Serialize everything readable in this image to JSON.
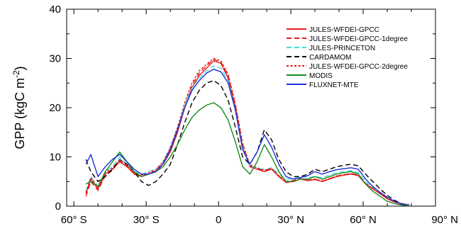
{
  "chart_data": {
    "type": "line",
    "title": "",
    "xlabel": "",
    "ylabel": "GPP (kgC m",
    "ylabel_sup": "-2",
    "ylabel_close": ")",
    "xlim": [
      -63,
      90
    ],
    "ylim": [
      0,
      40
    ],
    "x_ticks": [
      {
        "value": -60,
        "label": "60° S"
      },
      {
        "value": -30,
        "label": "30° S"
      },
      {
        "value": 0,
        "label": "0"
      },
      {
        "value": 30,
        "label": "30° N"
      },
      {
        "value": 60,
        "label": "60° N"
      },
      {
        "value": 90,
        "label": "90° N"
      }
    ],
    "y_ticks": [
      {
        "value": 0,
        "label": "0"
      },
      {
        "value": 10,
        "label": "10"
      },
      {
        "value": 20,
        "label": "20"
      },
      {
        "value": 30,
        "label": "30"
      },
      {
        "value": 40,
        "label": "40"
      }
    ],
    "grid": false,
    "legend_position": "top-right",
    "series": [
      {
        "name": "JULES-WFDEI-GPCC",
        "color": "#e31a1c",
        "dash": "solid",
        "x": [
          -55,
          -53,
          -50,
          -47,
          -44,
          -41,
          -38,
          -35,
          -32,
          -29,
          -26,
          -23,
          -20,
          -17,
          -14,
          -11,
          -8,
          -5,
          -2,
          1,
          4,
          7,
          10,
          13,
          16,
          19,
          22,
          25,
          28,
          31,
          34,
          37,
          40,
          43,
          46,
          49,
          52,
          55,
          58,
          61,
          64,
          67,
          70,
          73,
          76,
          79
        ],
        "y": [
          2.5,
          5.5,
          3.5,
          6.5,
          7.5,
          9,
          8,
          6.5,
          6,
          6.5,
          7,
          8.5,
          11,
          15,
          20,
          24,
          26.5,
          28,
          29.5,
          29,
          26,
          20,
          12,
          8,
          7.5,
          7,
          7.5,
          6,
          4.8,
          5,
          5.5,
          5.2,
          5.4,
          5,
          5.5,
          6,
          6.3,
          6.5,
          6.2,
          4.5,
          3.5,
          2.5,
          1.5,
          0.8,
          0.4,
          0.3
        ]
      },
      {
        "name": "JULES-WFDEI-GPCC-1degree",
        "color": "#e31a1c",
        "dash": "long",
        "x": [
          -55,
          -53,
          -50,
          -47,
          -44,
          -41,
          -38,
          -35,
          -32,
          -29,
          -26,
          -23,
          -20,
          -17,
          -14,
          -11,
          -8,
          -5,
          -2,
          1,
          4,
          7,
          10,
          13,
          16,
          19,
          22,
          25,
          28,
          31,
          34,
          37,
          40,
          43,
          46,
          49,
          52,
          55,
          58,
          61,
          64,
          67,
          70,
          73,
          76,
          79
        ],
        "y": [
          2,
          5,
          3.2,
          6.2,
          7.3,
          9.2,
          8.2,
          6.6,
          6.1,
          6.6,
          7.2,
          8.8,
          11.5,
          15.5,
          20.5,
          24.5,
          27,
          28.5,
          29.8,
          29.2,
          26.5,
          20.5,
          12.5,
          8.2,
          7.6,
          7.2,
          7.6,
          6.1,
          5,
          5.2,
          5.6,
          5.3,
          5.5,
          5.1,
          5.6,
          6.1,
          6.4,
          6.6,
          6.3,
          4.6,
          3.6,
          2.6,
          1.6,
          0.9,
          0.5,
          0.3
        ]
      },
      {
        "name": "JULES-PRINCETON",
        "color": "#40e0e0",
        "dash": "long",
        "x": [
          -55,
          -53,
          -50,
          -47,
          -44,
          -41,
          -38,
          -35,
          -32,
          -29,
          -26,
          -23,
          -20,
          -17,
          -14,
          -11,
          -8,
          -5,
          -2,
          1,
          4,
          7,
          10,
          13,
          16,
          19,
          22,
          25,
          28,
          31,
          34,
          37,
          40,
          43,
          46,
          49,
          52,
          55,
          58,
          61,
          64,
          67,
          70,
          73,
          76,
          79
        ],
        "y": [
          3,
          6,
          4,
          7,
          8,
          10,
          8.5,
          7,
          6.5,
          7,
          7.5,
          9,
          12,
          16,
          20.5,
          24,
          26,
          27.5,
          28.5,
          28,
          25.5,
          19.5,
          12,
          8,
          7.8,
          7.4,
          7.8,
          6.5,
          5.4,
          5.6,
          6,
          5.8,
          6,
          5.8,
          6.3,
          6.8,
          7,
          7.2,
          6.8,
          5,
          3.8,
          2.8,
          1.8,
          1,
          0.5,
          0.3
        ]
      },
      {
        "name": "CARDAMOM",
        "color": "#000000",
        "dash": "long",
        "x": [
          -55,
          -53,
          -50,
          -47,
          -44,
          -41,
          -38,
          -35,
          -32,
          -29,
          -26,
          -23,
          -20,
          -17,
          -14,
          -11,
          -8,
          -5,
          -2,
          1,
          4,
          7,
          10,
          13,
          16,
          19,
          22,
          25,
          28,
          31,
          34,
          37,
          40,
          43,
          46,
          49,
          52,
          55,
          58,
          61,
          64,
          67,
          70,
          73,
          76,
          79
        ],
        "y": [
          9.5,
          7,
          5,
          6,
          7.5,
          9.5,
          8.5,
          7,
          5,
          4.2,
          5,
          6.5,
          8.5,
          12.5,
          17,
          21,
          23.5,
          25,
          25.5,
          24.5,
          21.5,
          16,
          10,
          8.5,
          11,
          15.5,
          13.5,
          9.5,
          7,
          6,
          6,
          6.5,
          7.5,
          7,
          7.5,
          8,
          8.3,
          8.5,
          8.2,
          6.5,
          5,
          3.5,
          2.2,
          1.2,
          0.5,
          0.2
        ]
      },
      {
        "name": "JULES-WFDEI-GPCC-2degree",
        "color": "#e31a1c",
        "dash": "dotted",
        "x": [
          -55,
          -53,
          -50,
          -47,
          -44,
          -41,
          -38,
          -35,
          -32,
          -29,
          -26,
          -23,
          -20,
          -17,
          -14,
          -11,
          -8,
          -5,
          -2,
          1,
          4,
          7,
          10,
          13,
          16,
          19,
          22,
          25,
          28,
          31,
          34,
          37,
          40,
          43,
          46,
          49,
          52,
          55,
          58,
          61,
          64,
          67,
          70,
          73,
          76,
          79
        ],
        "y": [
          2.8,
          5.8,
          3.8,
          6.8,
          7.8,
          9.4,
          8.3,
          6.8,
          6.3,
          6.8,
          7.4,
          9,
          11.8,
          16,
          21,
          25,
          27.5,
          28.8,
          30,
          29.5,
          26.8,
          20.8,
          12.8,
          8.4,
          7.8,
          7.3,
          7.7,
          6.2,
          5,
          5.1,
          5.6,
          5.3,
          5.5,
          5.1,
          5.6,
          6.1,
          6.4,
          6.6,
          6.3,
          4.6,
          3.6,
          2.6,
          1.6,
          0.9,
          0.5,
          0.3
        ]
      },
      {
        "name": "MODIS",
        "color": "#1a8a1a",
        "dash": "solid",
        "x": [
          -55,
          -53,
          -50,
          -47,
          -44,
          -41,
          -38,
          -35,
          -32,
          -29,
          -26,
          -23,
          -20,
          -17,
          -14,
          -11,
          -8,
          -5,
          -2,
          1,
          4,
          7,
          10,
          13,
          16,
          19,
          22,
          25,
          28,
          31,
          34,
          37,
          40,
          43,
          46,
          49,
          52,
          55,
          58,
          61,
          64,
          67,
          70,
          73,
          76,
          79
        ],
        "y": [
          4.5,
          5,
          4,
          7,
          9,
          11,
          9,
          7,
          6,
          6.5,
          7,
          8,
          10,
          12.5,
          15.5,
          18,
          19.5,
          20.5,
          21,
          20,
          17.5,
          13,
          8,
          6.5,
          9,
          12.5,
          10,
          7,
          5,
          5,
          5.5,
          5.5,
          6,
          5.5,
          6,
          6.5,
          6.8,
          7,
          6.5,
          4.5,
          3,
          2,
          1,
          0.5,
          0.2,
          0.1
        ]
      },
      {
        "name": "FLUXNET-MTE",
        "color": "#1c2fd6",
        "dash": "solid",
        "x": [
          -55,
          -53,
          -50,
          -47,
          -44,
          -41,
          -38,
          -35,
          -32,
          -29,
          -26,
          -23,
          -20,
          -17,
          -14,
          -11,
          -8,
          -5,
          -2,
          1,
          4,
          7,
          10,
          13,
          16,
          19,
          22,
          25,
          28,
          31,
          34,
          37,
          40,
          43,
          46,
          49,
          52,
          55,
          58,
          61,
          64,
          67,
          70,
          73,
          76,
          79
        ],
        "y": [
          8.5,
          10.5,
          6,
          8,
          9.5,
          10.5,
          9,
          7.5,
          6.5,
          6.5,
          7,
          8.5,
          11.5,
          15.5,
          20,
          23.5,
          25.5,
          27,
          27.8,
          27.3,
          25,
          19.5,
          11.5,
          8.5,
          11,
          14.5,
          12,
          8.5,
          6,
          5.5,
          5.8,
          6.2,
          7,
          6.5,
          7,
          7.4,
          7.6,
          7.8,
          7.5,
          5.5,
          4,
          2.8,
          1.8,
          1,
          0.4,
          0.2
        ]
      }
    ]
  }
}
